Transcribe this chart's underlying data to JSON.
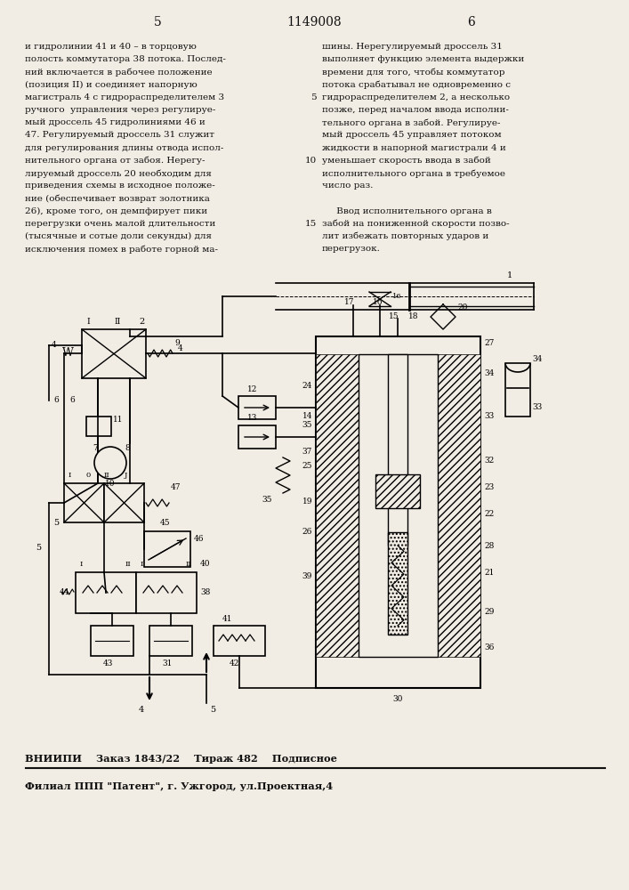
{
  "page_number_left": "5",
  "patent_number": "1149008",
  "page_number_right": "6",
  "left_column_text": [
    "и гидролинии 41 и 40 – в торцовую",
    "полость коммутатора 38 потока. Послед-",
    "ний включается в рабочее положение",
    "(позиция II) и соединяет напорную",
    "магистраль 4 с гидрораспределителем 3",
    "ручного  управления через регулируе-",
    "мый дроссель 45 гидролиниями 46 и",
    "47. Регулируемый дроссель 31 служит",
    "для регулирования длины отвода испол-",
    "нительного органа от забоя. Нерегу-",
    "лируемый дроссель 20 необходим для",
    "приведения схемы в исходное положе-",
    "ние (обеспечивает возврат золотника",
    "26), кроме того, он демпфирует пики",
    "перегрузки очень малой длительности",
    "(тысячные и сотые доли секунды) для",
    "исключения помех в работе горной ма-"
  ],
  "line_nums": {
    "4": "5",
    "9": "10",
    "14": "15"
  },
  "right_column_text": [
    "шины. Нерегулируемый дроссель 31",
    "выполняет функцию элемента выдержки",
    "времени для того, чтобы коммутатор",
    "потока срабатывал не одновременно с",
    "гидрораспределителем 2, а несколько",
    "позже, перед началом ввода исполни-",
    "тельного органа в забой. Регулируе-",
    "мый дроссель 45 управляет потоком",
    "жидкости в напорной магистрали 4 и",
    "уменьшает скорость ввода в забой",
    "исполнительного органа в требуемое",
    "число раз.",
    "",
    "     Ввод исполнительного органа в",
    "забой на пониженной скорости позво-",
    "лит избежать повторных ударов и",
    "перегрузок."
  ],
  "footer_line1": "ВНИИПИ    Заказ 1843/22    Тираж 482    Подписное",
  "footer_line2": "Филиал ППП \"Патент\", г. Ужгород, ул.Проектная,4",
  "bg_color": "#f2ede4",
  "text_color": "#111111"
}
